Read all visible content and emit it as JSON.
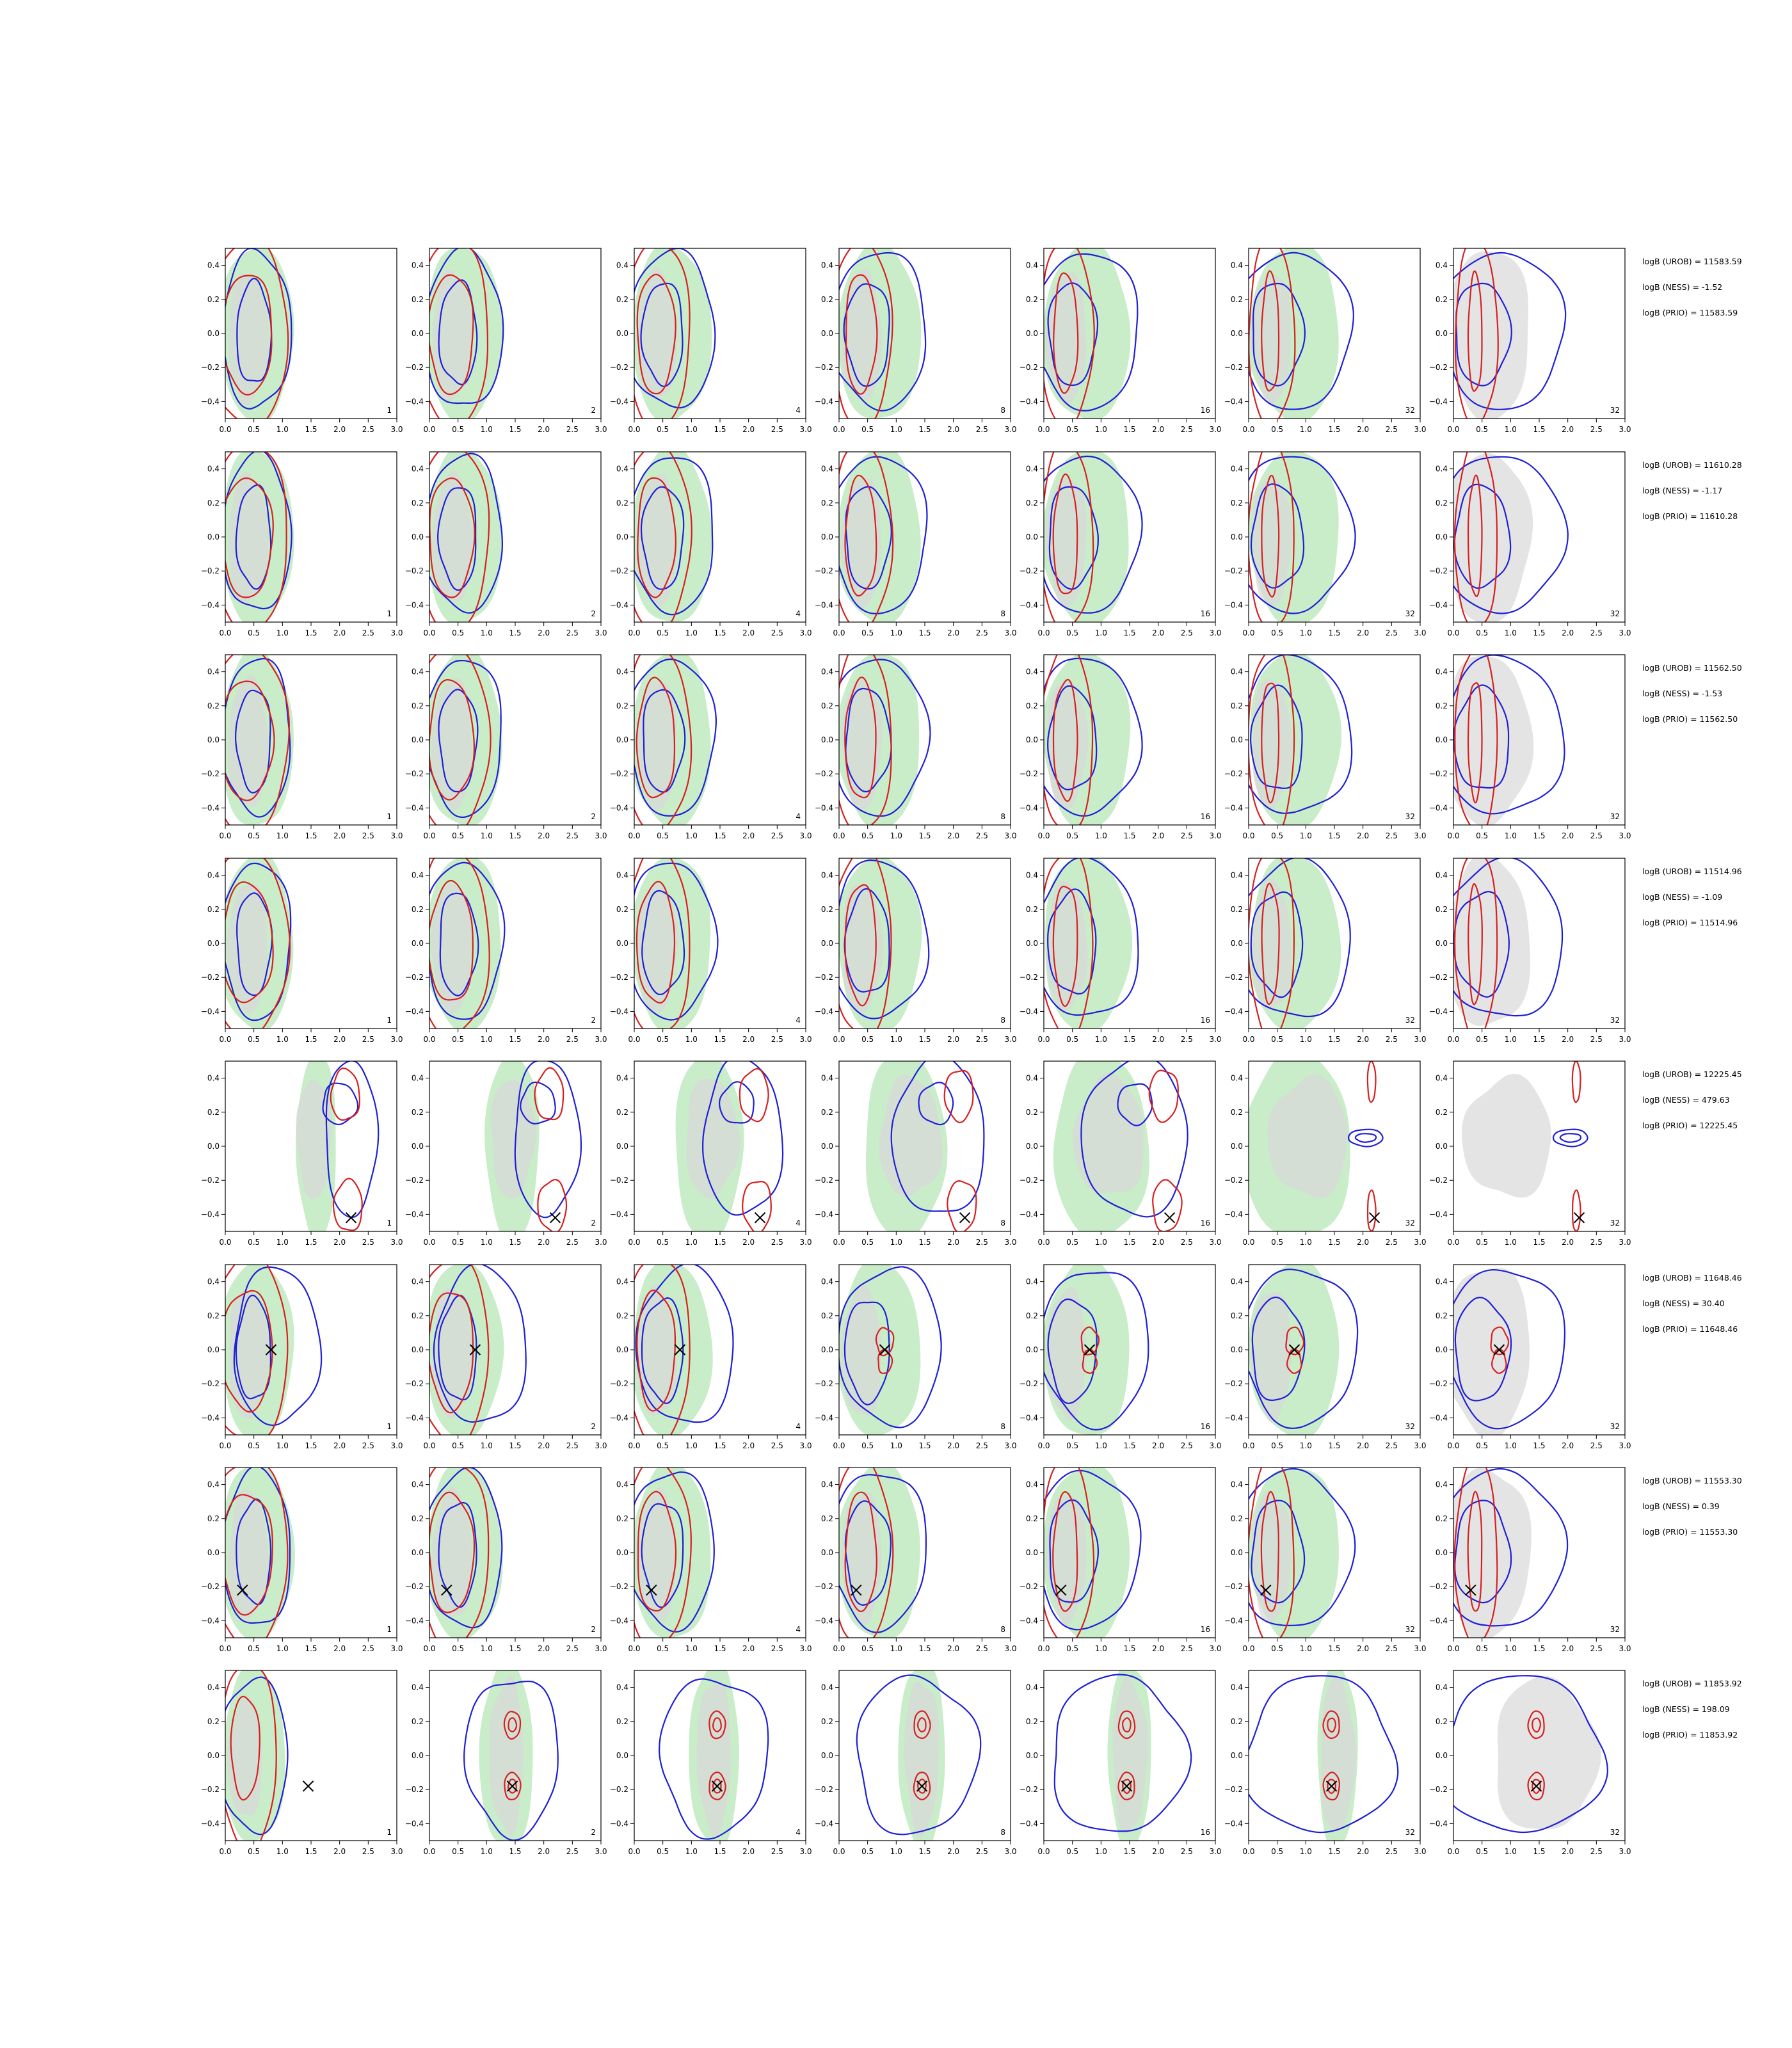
{
  "chart_data": {
    "type": "contour",
    "xlim": [
      0.0,
      3.0
    ],
    "ylim": [
      -0.5,
      0.5
    ],
    "xticks": [
      "0.0",
      "0.5",
      "1.0",
      "1.5",
      "2.0",
      "2.5",
      "3.0"
    ],
    "yticks": [
      "0.4",
      "0.2",
      "0.0",
      "−0.2",
      "−0.4"
    ],
    "ytick_values": [
      0.4,
      0.2,
      0.0,
      -0.2,
      -0.4
    ],
    "grid": false,
    "colors": {
      "fill_green": "#c9ecc9",
      "fill_gray": "#d9d9d9",
      "line_blue": "#1f1fd6",
      "line_red": "#d62020",
      "marker": "#000000"
    },
    "rows": [
      {
        "panel_labels": [
          "1",
          "2",
          "4",
          "8",
          "16",
          "32",
          "32"
        ],
        "truth": null,
        "annotations": [
          "logB (UROB) = 11583.59",
          "logB (NESS) = -1.52",
          "logB (PRIO) = 11583.59"
        ],
        "shape": "left"
      },
      {
        "panel_labels": [
          "1",
          "2",
          "4",
          "8",
          "16",
          "32",
          "32"
        ],
        "truth": null,
        "annotations": [
          "logB (UROB) = 11610.28",
          "logB (NESS) = -1.17",
          "logB (PRIO) = 11610.28"
        ],
        "shape": "left"
      },
      {
        "panel_labels": [
          "1",
          "2",
          "4",
          "8",
          "16",
          "32",
          "32"
        ],
        "truth": null,
        "annotations": [
          "logB (UROB) = 11562.50",
          "logB (NESS) = -1.53",
          "logB (PRIO) = 11562.50"
        ],
        "shape": "left"
      },
      {
        "panel_labels": [
          "1",
          "2",
          "4",
          "8",
          "16",
          "32",
          "32"
        ],
        "truth": null,
        "annotations": [
          "logB (UROB) = 11514.96",
          "logB (NESS) = -1.09",
          "logB (PRIO) = 11514.96"
        ],
        "shape": "left"
      },
      {
        "panel_labels": [
          "1",
          "2",
          "4",
          "8",
          "16",
          "32",
          "32"
        ],
        "truth": [
          2.2,
          -0.42
        ],
        "annotations": [
          "logB (UROB) = 12225.45",
          "logB (NESS) = 479.63",
          "logB (PRIO) = 12225.45"
        ],
        "shape": "far"
      },
      {
        "panel_labels": [
          "1",
          "2",
          "4",
          "8",
          "16",
          "32",
          "32"
        ],
        "truth": [
          0.8,
          0.0
        ],
        "annotations": [
          "logB (UROB) = 11648.46",
          "logB (NESS) = 30.40",
          "logB (PRIO) = 11648.46"
        ],
        "shape": "center"
      },
      {
        "panel_labels": [
          "1",
          "2",
          "4",
          "8",
          "16",
          "32",
          "32"
        ],
        "truth": [
          0.3,
          -0.22
        ],
        "annotations": [
          "logB (UROB) = 11553.30",
          "logB (NESS) = 0.39",
          "logB (PRIO) = 11553.30"
        ],
        "shape": "left"
      },
      {
        "panel_labels": [
          "1",
          "2",
          "4",
          "8",
          "16",
          "32",
          "32"
        ],
        "truth": [
          1.45,
          -0.18
        ],
        "annotations": [
          "logB (UROB) = 11853.92",
          "logB (NESS) = 198.09",
          "logB (PRIO) = 11853.92"
        ],
        "shape": "twin"
      }
    ]
  }
}
